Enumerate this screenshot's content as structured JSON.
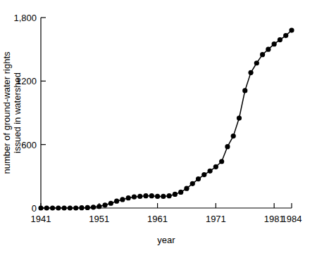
{
  "chart_data": {
    "type": "line",
    "xlabel": "year",
    "ylabel": [
      "number of ground-water rights",
      "issued in watershed"
    ],
    "x": [
      1941,
      1942,
      1943,
      1944,
      1945,
      1946,
      1947,
      1948,
      1949,
      1950,
      1951,
      1952,
      1953,
      1954,
      1955,
      1956,
      1957,
      1958,
      1959,
      1960,
      1961,
      1962,
      1963,
      1964,
      1965,
      1966,
      1967,
      1968,
      1969,
      1970,
      1971,
      1972,
      1973,
      1974,
      1975,
      1976,
      1977,
      1978,
      1979,
      1980,
      1981,
      1982,
      1983,
      1984
    ],
    "values": [
      0,
      0,
      0,
      0,
      0,
      0,
      0,
      2,
      4,
      8,
      15,
      28,
      45,
      65,
      80,
      95,
      105,
      110,
      115,
      115,
      110,
      110,
      115,
      130,
      150,
      185,
      230,
      275,
      315,
      350,
      390,
      440,
      580,
      680,
      850,
      1110,
      1280,
      1370,
      1450,
      1500,
      1550,
      1590,
      1630,
      1680
    ],
    "color": "#000000",
    "marker": "circle",
    "xlim": [
      1941,
      1984
    ],
    "xticks": [
      1941,
      1951,
      1961,
      1971,
      1981,
      1984
    ],
    "ylim": [
      0,
      1800
    ],
    "yticks": [
      0,
      600,
      1200,
      {
        "value": 1800,
        "label": "1,800"
      }
    ],
    "grid": false
  }
}
